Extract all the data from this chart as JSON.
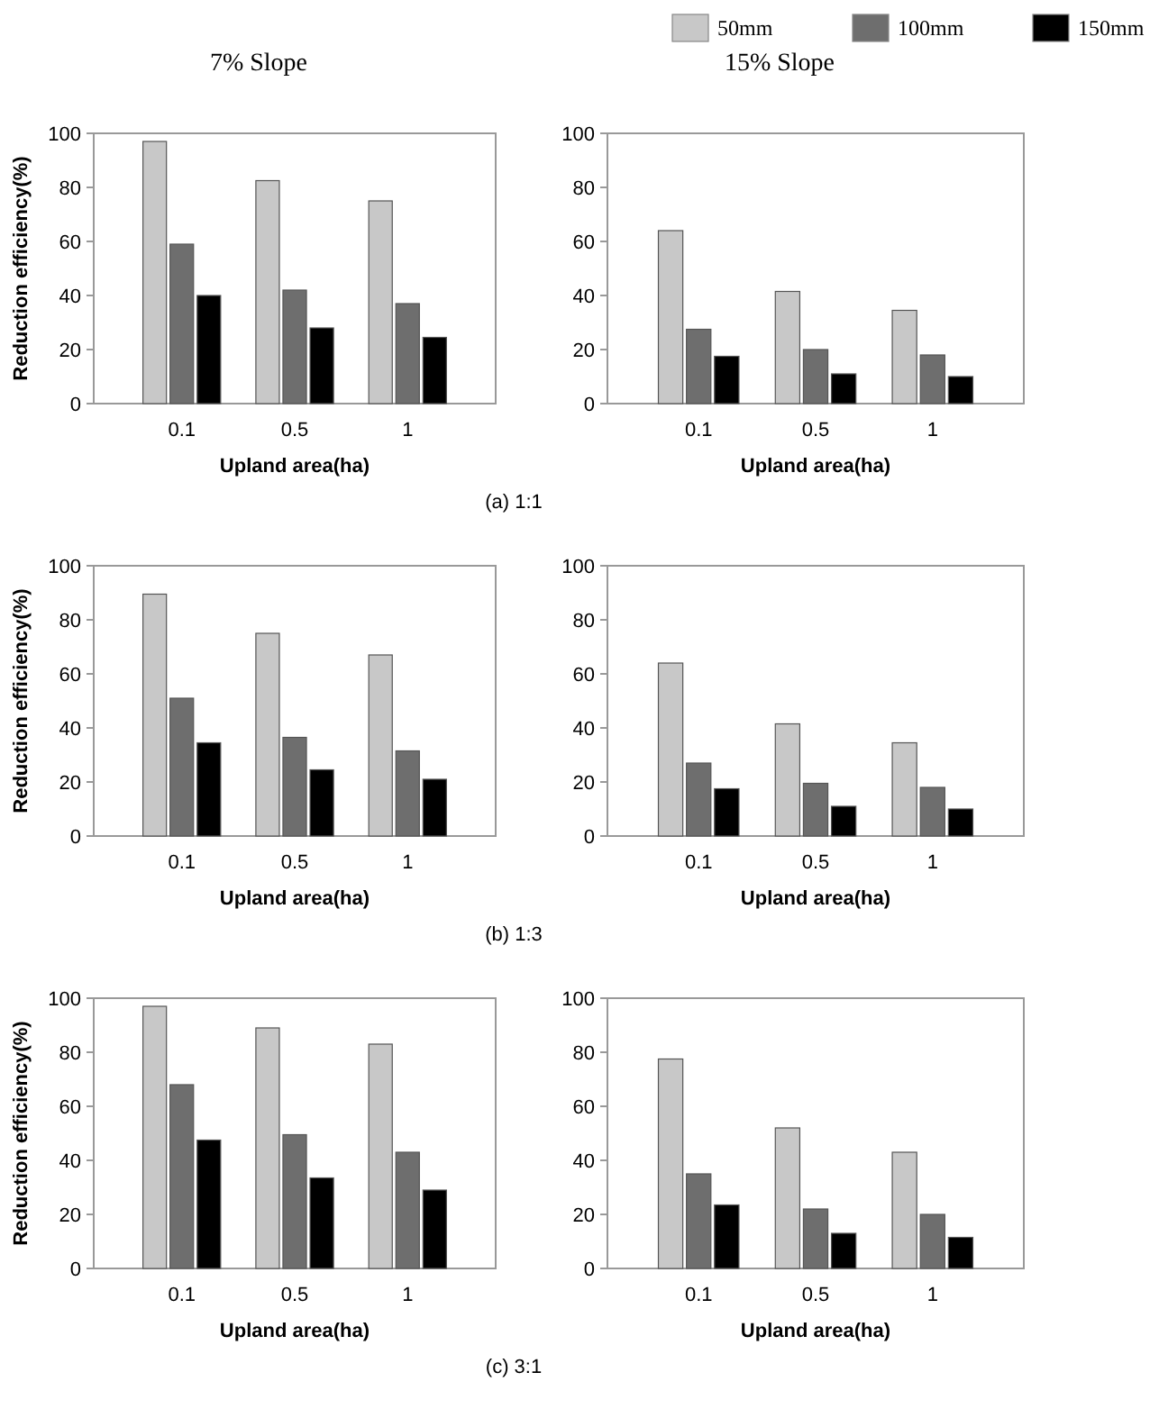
{
  "chart_data": [
    {
      "type": "bar",
      "title": "7%  Slope",
      "xlabel": "Upland area(ha)",
      "ylabel": "Reduction efficiency(%)",
      "categories": [
        "0.1",
        "0.5",
        "1"
      ],
      "ylim": [
        0,
        100
      ],
      "yticks": [
        0,
        20,
        40,
        60,
        80,
        100
      ],
      "annotations": [
        "(a) 1:1"
      ],
      "series": [
        {
          "color": "#c8c8c8",
          "values": [
            97,
            82.5,
            75
          ]
        },
        {
          "color": "#6e6e6e",
          "values": [
            59,
            42,
            37
          ]
        },
        {
          "color": "#000000",
          "values": [
            40,
            28,
            24.5
          ]
        }
      ]
    },
    {
      "type": "bar",
      "title": "15%  Slope",
      "xlabel": "Upland area(ha)",
      "categories": [
        "0.1",
        "0.5",
        "1"
      ],
      "ylim": [
        0,
        100
      ],
      "yticks": [
        0,
        20,
        40,
        60,
        80,
        100
      ],
      "legend": "top",
      "series": [
        {
          "name": "50mm",
          "color": "#c8c8c8",
          "values": [
            64,
            41.5,
            34.5
          ]
        },
        {
          "name": "100mm",
          "color": "#6e6e6e",
          "values": [
            27.5,
            20,
            18
          ]
        },
        {
          "name": "150mm",
          "color": "#000000",
          "values": [
            17.5,
            11,
            10
          ]
        }
      ]
    },
    {
      "type": "bar",
      "xlabel": "Upland area(ha)",
      "ylabel": "Reduction efficiency(%)",
      "categories": [
        "0.1",
        "0.5",
        "1"
      ],
      "ylim": [
        0,
        100
      ],
      "yticks": [
        0,
        20,
        40,
        60,
        80,
        100
      ],
      "annotations": [
        "(b) 1:3"
      ],
      "series": [
        {
          "color": "#c8c8c8",
          "values": [
            89.5,
            75,
            67
          ]
        },
        {
          "color": "#6e6e6e",
          "values": [
            51,
            36.5,
            31.5
          ]
        },
        {
          "color": "#000000",
          "values": [
            34.5,
            24.5,
            21
          ]
        }
      ]
    },
    {
      "type": "bar",
      "xlabel": "Upland area(ha)",
      "categories": [
        "0.1",
        "0.5",
        "1"
      ],
      "ylim": [
        0,
        100
      ],
      "yticks": [
        0,
        20,
        40,
        60,
        80,
        100
      ],
      "series": [
        {
          "color": "#c8c8c8",
          "values": [
            64,
            41.5,
            34.5
          ]
        },
        {
          "color": "#6e6e6e",
          "values": [
            27,
            19.5,
            18
          ]
        },
        {
          "color": "#000000",
          "values": [
            17.5,
            11,
            10
          ]
        }
      ]
    },
    {
      "type": "bar",
      "xlabel": "Upland area(ha)",
      "ylabel": "Reduction efficiency(%)",
      "categories": [
        "0.1",
        "0.5",
        "1"
      ],
      "ylim": [
        0,
        100
      ],
      "yticks": [
        0,
        20,
        40,
        60,
        80,
        100
      ],
      "annotations": [
        "(c) 3:1"
      ],
      "series": [
        {
          "color": "#c8c8c8",
          "values": [
            97,
            89,
            83
          ]
        },
        {
          "color": "#6e6e6e",
          "values": [
            68,
            49.5,
            43
          ]
        },
        {
          "color": "#000000",
          "values": [
            47.5,
            33.5,
            29
          ]
        }
      ]
    },
    {
      "type": "bar",
      "xlabel": "Upland area(ha)",
      "categories": [
        "0.1",
        "0.5",
        "1"
      ],
      "ylim": [
        0,
        100
      ],
      "yticks": [
        0,
        20,
        40,
        60,
        80,
        100
      ],
      "series": [
        {
          "color": "#c8c8c8",
          "values": [
            77.5,
            52,
            43
          ]
        },
        {
          "color": "#6e6e6e",
          "values": [
            35,
            22,
            20
          ]
        },
        {
          "color": "#000000",
          "values": [
            23.5,
            13,
            11.5
          ]
        }
      ]
    }
  ]
}
